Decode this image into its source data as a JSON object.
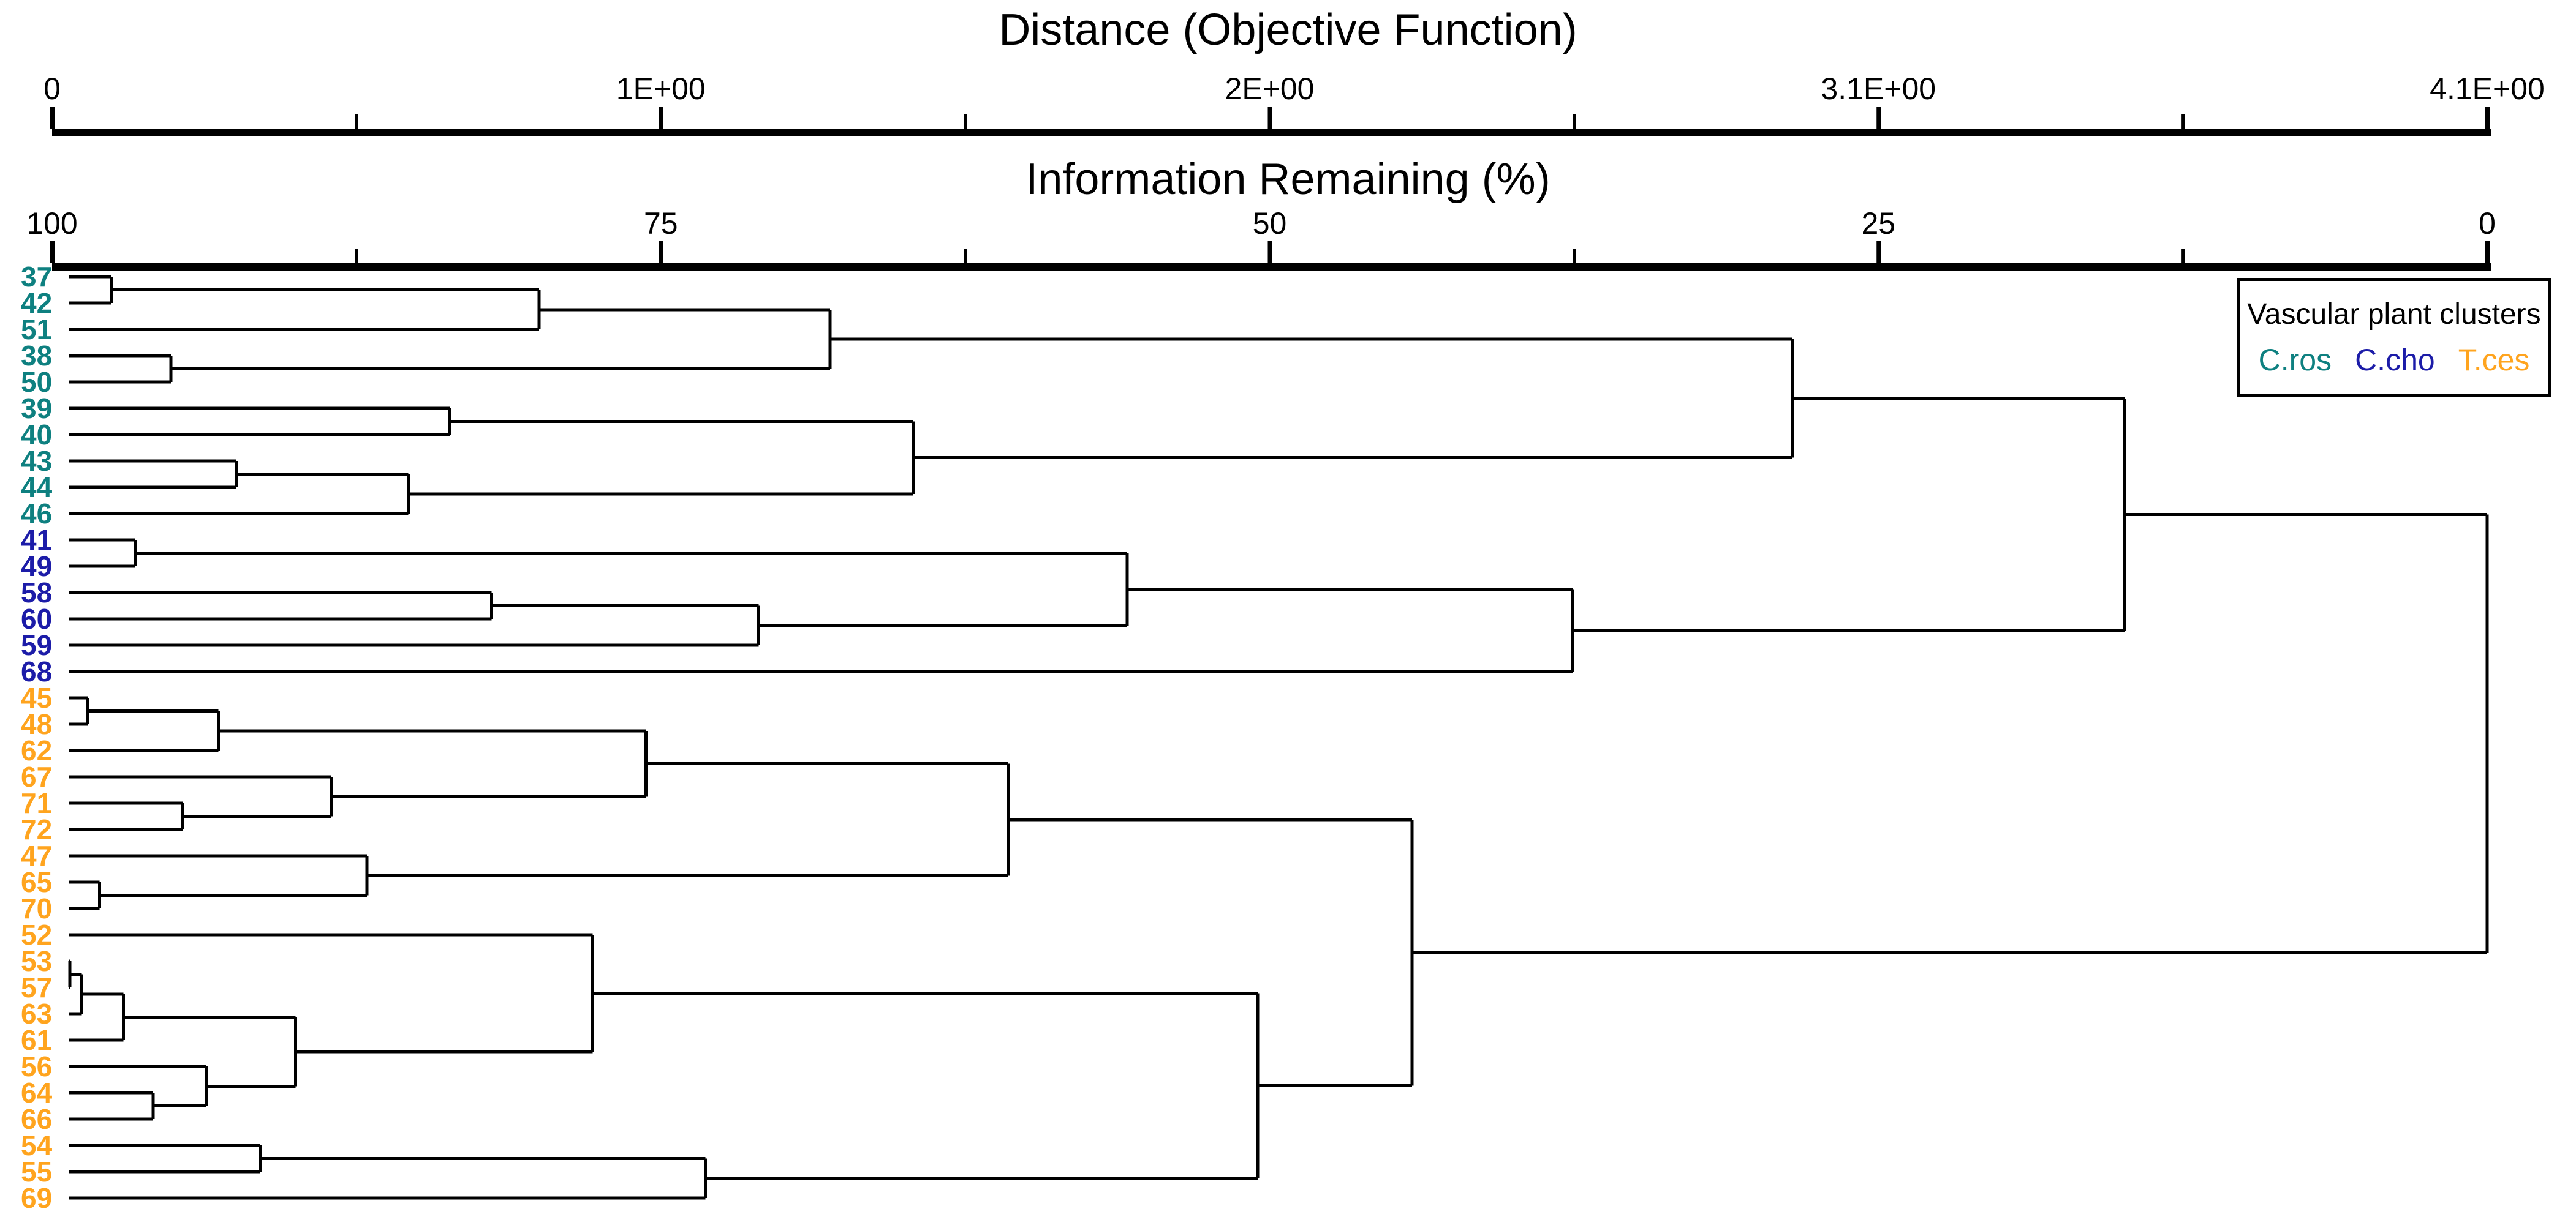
{
  "figure": {
    "distance_axis": {
      "title": "Distance (Objective Function)",
      "tick_labels": [
        "0",
        "1E+00",
        "2E+00",
        "3.1E+00",
        "4.1E+00"
      ]
    },
    "info_axis": {
      "title": "Information Remaining (%)",
      "tick_labels": [
        "100",
        "75",
        "50",
        "25",
        "0"
      ]
    }
  },
  "legend": {
    "title": "Vascular plant clusters",
    "entries": [
      {
        "label": "C.ros",
        "color": "#0E8080"
      },
      {
        "label": "C.cho",
        "color": "#1C1CA8"
      },
      {
        "label": "T.ces",
        "color": "#FFA41E"
      }
    ]
  },
  "chart_data": {
    "type": "dendrogram",
    "orientation": "horizontal, root at right",
    "distance_axis_range": [
      0,
      4.1
    ],
    "info_axis_range": [
      100,
      0
    ],
    "grid": false,
    "legend_position": "top-right",
    "group_colors": {
      "C.ros": "#0E8080",
      "C.cho": "#1C1CA8",
      "T.ces": "#FFA41E"
    },
    "leaves": [
      {
        "id": "37",
        "group": "C.ros"
      },
      {
        "id": "42",
        "group": "C.ros"
      },
      {
        "id": "51",
        "group": "C.ros"
      },
      {
        "id": "38",
        "group": "C.ros"
      },
      {
        "id": "50",
        "group": "C.ros"
      },
      {
        "id": "39",
        "group": "C.ros"
      },
      {
        "id": "40",
        "group": "C.ros"
      },
      {
        "id": "43",
        "group": "C.ros"
      },
      {
        "id": "44",
        "group": "C.ros"
      },
      {
        "id": "46",
        "group": "C.ros"
      },
      {
        "id": "41",
        "group": "C.cho"
      },
      {
        "id": "49",
        "group": "C.cho"
      },
      {
        "id": "58",
        "group": "C.cho"
      },
      {
        "id": "60",
        "group": "C.cho"
      },
      {
        "id": "59",
        "group": "C.cho"
      },
      {
        "id": "68",
        "group": "C.cho"
      },
      {
        "id": "45",
        "group": "T.ces"
      },
      {
        "id": "48",
        "group": "T.ces"
      },
      {
        "id": "62",
        "group": "T.ces"
      },
      {
        "id": "67",
        "group": "T.ces"
      },
      {
        "id": "71",
        "group": "T.ces"
      },
      {
        "id": "72",
        "group": "T.ces"
      },
      {
        "id": "47",
        "group": "T.ces"
      },
      {
        "id": "65",
        "group": "T.ces"
      },
      {
        "id": "70",
        "group": "T.ces"
      },
      {
        "id": "52",
        "group": "T.ces"
      },
      {
        "id": "53",
        "group": "T.ces"
      },
      {
        "id": "57",
        "group": "T.ces"
      },
      {
        "id": "63",
        "group": "T.ces"
      },
      {
        "id": "61",
        "group": "T.ces"
      },
      {
        "id": "56",
        "group": "T.ces"
      },
      {
        "id": "64",
        "group": "T.ces"
      },
      {
        "id": "66",
        "group": "T.ces"
      },
      {
        "id": "54",
        "group": "T.ces"
      },
      {
        "id": "55",
        "group": "T.ces"
      },
      {
        "id": "69",
        "group": "T.ces"
      }
    ],
    "tree": {
      "d": 4.1,
      "children": [
        {
          "d": 3.49,
          "children": [
            {
              "d": 2.93,
              "children": [
                {
                  "d": 1.31,
                  "children": [
                    {
                      "d": 0.82,
                      "children": [
                        {
                          "d": 0.1,
                          "children": [
                            {
                              "leaf": "37"
                            },
                            {
                              "leaf": "42"
                            }
                          ]
                        },
                        {
                          "leaf": "51"
                        }
                      ]
                    },
                    {
                      "d": 0.2,
                      "children": [
                        {
                          "leaf": "38"
                        },
                        {
                          "leaf": "50"
                        }
                      ]
                    }
                  ]
                },
                {
                  "d": 1.45,
                  "children": [
                    {
                      "d": 0.67,
                      "children": [
                        {
                          "leaf": "39"
                        },
                        {
                          "leaf": "40"
                        }
                      ]
                    },
                    {
                      "d": 0.6,
                      "children": [
                        {
                          "d": 0.31,
                          "children": [
                            {
                              "leaf": "43"
                            },
                            {
                              "leaf": "44"
                            }
                          ]
                        },
                        {
                          "leaf": "46"
                        }
                      ]
                    }
                  ]
                }
              ]
            },
            {
              "d": 2.56,
              "children": [
                {
                  "d": 1.81,
                  "children": [
                    {
                      "d": 0.14,
                      "children": [
                        {
                          "leaf": "41"
                        },
                        {
                          "leaf": "49"
                        }
                      ]
                    },
                    {
                      "d": 1.19,
                      "children": [
                        {
                          "d": 0.74,
                          "children": [
                            {
                              "leaf": "58"
                            },
                            {
                              "leaf": "60"
                            }
                          ]
                        },
                        {
                          "leaf": "59"
                        }
                      ]
                    }
                  ]
                },
                {
                  "leaf": "68"
                }
              ]
            }
          ]
        },
        {
          "d": 2.29,
          "children": [
            {
              "d": 1.61,
              "children": [
                {
                  "d": 1.0,
                  "children": [
                    {
                      "d": 0.28,
                      "children": [
                        {
                          "d": 0.06,
                          "children": [
                            {
                              "leaf": "45"
                            },
                            {
                              "leaf": "48"
                            }
                          ]
                        },
                        {
                          "leaf": "62"
                        }
                      ]
                    },
                    {
                      "d": 0.47,
                      "children": [
                        {
                          "leaf": "67"
                        },
                        {
                          "d": 0.22,
                          "children": [
                            {
                              "leaf": "71"
                            },
                            {
                              "leaf": "72"
                            }
                          ]
                        }
                      ]
                    }
                  ]
                },
                {
                  "d": 0.53,
                  "children": [
                    {
                      "leaf": "47"
                    },
                    {
                      "d": 0.08,
                      "children": [
                        {
                          "leaf": "65"
                        },
                        {
                          "leaf": "70"
                        }
                      ]
                    }
                  ]
                }
              ]
            },
            {
              "d": 2.03,
              "children": [
                {
                  "d": 0.91,
                  "children": [
                    {
                      "leaf": "52"
                    },
                    {
                      "d": 0.41,
                      "children": [
                        {
                          "d": 0.12,
                          "children": [
                            {
                              "d": 0.05,
                              "children": [
                                {
                                  "d": 0.03,
                                  "children": [
                                    {
                                      "leaf": "53"
                                    },
                                    {
                                      "leaf": "57"
                                    }
                                  ]
                                },
                                {
                                  "leaf": "63"
                                }
                              ]
                            },
                            {
                              "leaf": "61"
                            }
                          ]
                        },
                        {
                          "d": 0.26,
                          "children": [
                            {
                              "leaf": "56"
                            },
                            {
                              "d": 0.17,
                              "children": [
                                {
                                  "leaf": "64"
                                },
                                {
                                  "leaf": "66"
                                }
                              ]
                            }
                          ]
                        }
                      ]
                    }
                  ]
                },
                {
                  "d": 1.1,
                  "children": [
                    {
                      "d": 0.35,
                      "children": [
                        {
                          "leaf": "54"
                        },
                        {
                          "leaf": "55"
                        }
                      ]
                    },
                    {
                      "leaf": "69"
                    }
                  ]
                }
              ]
            }
          ]
        }
      ]
    }
  }
}
